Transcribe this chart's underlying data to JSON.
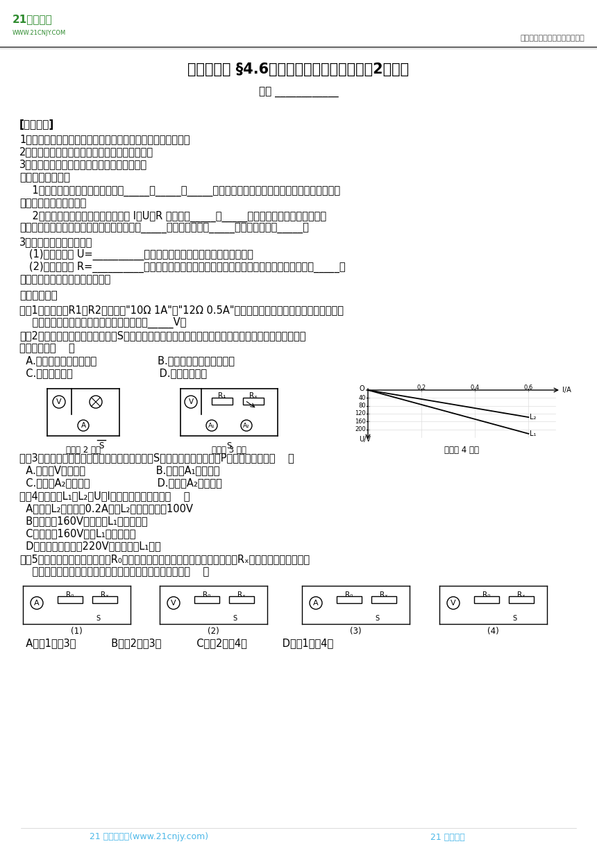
{
  "title": "浙教版八上 §4.6电流与电压、电阻的关系（2）学案",
  "header_right": "中小学教育资源及组卷应用平台",
  "footer_left": "21 世纪教育网(www.21cnjy.com)",
  "footer_right": "21 清风明月",
  "bg_color": "#ffffff",
  "header_line_color": "#888888",
  "footer_text_color": "#4db8e8",
  "name_line": "姓名 ____________",
  "example1_line1": "例题1、定值电阻R1和R2分别标有\"10Ω 1A\"和\"12Ω 0.5A\"的字样，现将它们串联起来接到某电源两",
  "example1_line2": "    端，为了不损坏电阻，该电源电压不能超过_____V。"
}
